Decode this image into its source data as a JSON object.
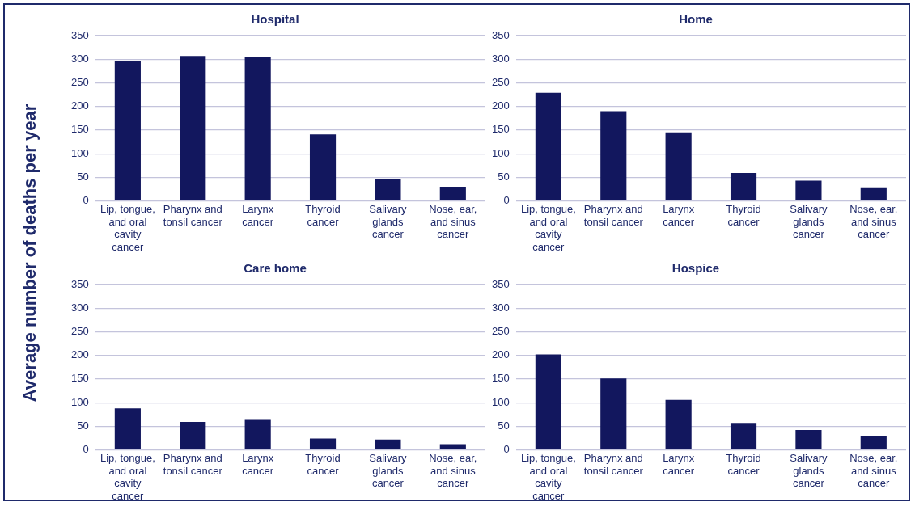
{
  "chart_data": [
    {
      "type": "bar",
      "title": "Hospital",
      "ylabel": "Average number of deaths per year",
      "categories": [
        "Lip, tongue, and oral cavity cancer",
        "Pharynx and tonsil cancer",
        "Larynx cancer",
        "Thyroid cancer",
        "Salivary glands cancer",
        "Nose, ear, and sinus cancer"
      ],
      "values": [
        296,
        307,
        304,
        141,
        47,
        30
      ],
      "color": "#12175e",
      "ylim": [
        0,
        350
      ],
      "yticks": [
        0,
        50,
        100,
        150,
        200,
        250,
        300,
        350
      ],
      "grid": "y"
    },
    {
      "type": "bar",
      "title": "Home",
      "categories": [
        "Lip, tongue, and oral cavity cancer",
        "Pharynx and tonsil cancer",
        "Larynx cancer",
        "Thyroid cancer",
        "Salivary glands cancer",
        "Nose, ear, and sinus cancer"
      ],
      "values": [
        229,
        190,
        145,
        59,
        43,
        29
      ],
      "color": "#12175e",
      "ylim": [
        0,
        350
      ],
      "yticks": [
        0,
        50,
        100,
        150,
        200,
        250,
        300,
        350
      ],
      "grid": "y"
    },
    {
      "type": "bar",
      "title": "Care home",
      "categories": [
        "Lip, tongue, and oral cavity cancer",
        "Pharynx and tonsil cancer",
        "Larynx cancer",
        "Thyroid cancer",
        "Salivary glands cancer",
        "Nose, ear, and sinus cancer"
      ],
      "values": [
        88,
        59,
        65,
        24,
        22,
        12
      ],
      "color": "#12175e",
      "ylim": [
        0,
        350
      ],
      "yticks": [
        0,
        50,
        100,
        150,
        200,
        250,
        300,
        350
      ],
      "grid": "y"
    },
    {
      "type": "bar",
      "title": "Hospice",
      "categories": [
        "Lip, tongue, and oral cavity cancer",
        "Pharynx and tonsil cancer",
        "Larynx cancer",
        "Thyroid cancer",
        "Salivary glands cancer",
        "Nose, ear, and sinus cancer"
      ],
      "values": [
        202,
        151,
        106,
        57,
        42,
        30
      ],
      "color": "#12175e",
      "ylim": [
        0,
        350
      ],
      "yticks": [
        0,
        50,
        100,
        150,
        200,
        250,
        300,
        350
      ],
      "grid": "y"
    }
  ]
}
